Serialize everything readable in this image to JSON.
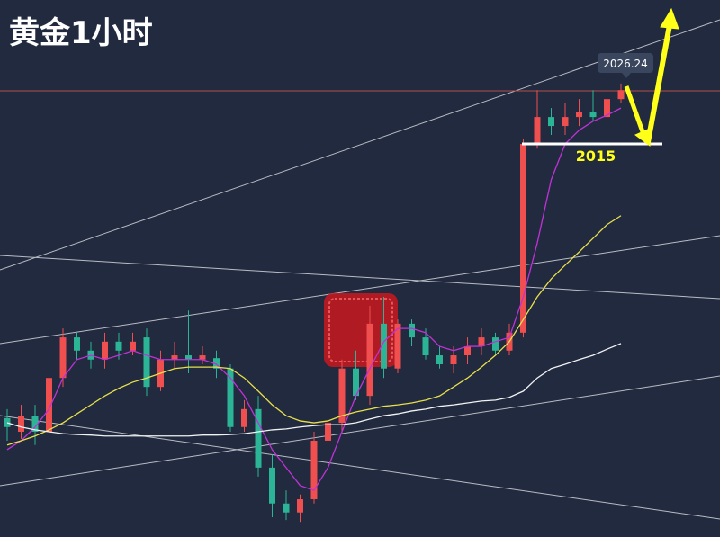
{
  "chart_data": {
    "type": "candlestick",
    "title": "黄金1小时",
    "ylim": [
      1931.7,
      2045.5
    ],
    "up_color": "#ef4f4f",
    "down_color": "#2bb596",
    "open": [
      1956.9,
      1954.0,
      1957.4,
      1954.0,
      1965.4,
      1974.0,
      1971.2,
      1969.3,
      1973.1,
      1971.2,
      1974.0,
      1963.5,
      1969.3,
      1970.2,
      1969.3,
      1969.6,
      1967.4,
      1955.0,
      1958.8,
      1946.4,
      1938.8,
      1936.9,
      1939.7,
      1952.1,
      1955.9,
      1967.4,
      1961.6,
      1976.9,
      1967.4,
      1976.9,
      1974.0,
      1970.2,
      1968.3,
      1970.2,
      1972.1,
      1974.0,
      1971.2,
      1975.0,
      2015.0,
      2020.7,
      2018.8,
      2020.7,
      2021.7,
      2020.7,
      2024.5
    ],
    "high": [
      1958.8,
      1959.7,
      1959.7,
      1967.4,
      1975.9,
      1975.0,
      1973.1,
      1975.0,
      1975.0,
      1975.0,
      1975.9,
      1971.2,
      1973.1,
      1979.7,
      1972.1,
      1971.2,
      1968.3,
      1960.7,
      1961.6,
      1949.2,
      1941.6,
      1940.7,
      1954.0,
      1957.8,
      1969.3,
      1971.2,
      1980.7,
      1982.6,
      1977.8,
      1977.8,
      1975.9,
      1972.1,
      1972.1,
      1974.0,
      1975.9,
      1975.0,
      1976.9,
      2016.0,
      2026.4,
      2022.6,
      2023.6,
      2024.5,
      2026.4,
      2026.4,
      2027.8
    ],
    "low": [
      1952.1,
      1952.5,
      1951.2,
      1952.1,
      1963.5,
      1969.3,
      1967.4,
      1967.4,
      1969.3,
      1970.2,
      1961.6,
      1962.6,
      1967.4,
      1966.4,
      1968.3,
      1965.4,
      1954.0,
      1954.0,
      1944.5,
      1935.9,
      1935.3,
      1934.9,
      1938.8,
      1950.2,
      1954.0,
      1960.7,
      1959.7,
      1965.4,
      1966.4,
      1972.1,
      1969.3,
      1967.4,
      1966.4,
      1968.3,
      1970.2,
      1970.2,
      1970.2,
      1974.0,
      2014.0,
      2016.9,
      2016.9,
      2018.8,
      2019.8,
      2019.8,
      2023.6
    ],
    "close": [
      1955.0,
      1957.4,
      1954.0,
      1965.4,
      1974.0,
      1971.2,
      1969.3,
      1973.1,
      1971.2,
      1973.1,
      1963.5,
      1969.3,
      1970.2,
      1969.3,
      1970.2,
      1967.4,
      1955.0,
      1958.8,
      1946.4,
      1938.8,
      1936.9,
      1939.7,
      1952.1,
      1955.9,
      1967.4,
      1961.6,
      1976.9,
      1967.4,
      1976.9,
      1974.0,
      1970.2,
      1968.3,
      1970.2,
      1972.1,
      1974.0,
      1971.2,
      1975.0,
      2015.0,
      2020.7,
      2018.8,
      2020.7,
      2021.7,
      2020.7,
      2024.5,
      2026.4
    ],
    "lines": [
      {
        "color": "#c032d6",
        "values": [
          1950.2,
          1952.1,
          1955.0,
          1958.8,
          1965.4,
          1969.3,
          1970.2,
          1969.3,
          1970.2,
          1971.2,
          1970.2,
          1969.3,
          1969.3,
          1969.3,
          1969.3,
          1968.3,
          1965.4,
          1961.6,
          1955.9,
          1950.2,
          1946.4,
          1942.6,
          1941.6,
          1946.4,
          1954.0,
          1961.6,
          1967.4,
          1973.1,
          1975.9,
          1975.9,
          1975.0,
          1972.1,
          1971.2,
          1972.1,
          1972.1,
          1973.1,
          1974.0,
          1982.6,
          1994.0,
          2007.4,
          2015.0,
          2017.9,
          2019.8,
          2021.1,
          2022.6
        ]
      },
      {
        "color": "#e8e04a",
        "values": [
          1951.2,
          1952.1,
          1953.1,
          1954.4,
          1955.9,
          1957.8,
          1959.7,
          1961.6,
          1963.2,
          1964.5,
          1965.4,
          1966.4,
          1967.4,
          1967.7,
          1967.7,
          1967.7,
          1967.4,
          1965.4,
          1962.6,
          1959.7,
          1957.4,
          1956.3,
          1955.9,
          1956.3,
          1957.4,
          1958.2,
          1958.8,
          1959.4,
          1959.7,
          1960.1,
          1960.7,
          1961.6,
          1963.5,
          1965.4,
          1967.7,
          1970.2,
          1973.1,
          1977.8,
          1982.6,
          1986.4,
          1989.3,
          1992.1,
          1995.0,
          1997.9,
          1999.8
        ]
      },
      {
        "color": "#f2f2f2",
        "values": [
          1955.9,
          1955.0,
          1954.4,
          1954.0,
          1953.6,
          1953.4,
          1953.3,
          1953.1,
          1953.1,
          1953.1,
          1953.1,
          1953.1,
          1953.1,
          1953.1,
          1953.3,
          1953.3,
          1953.4,
          1953.6,
          1954.0,
          1954.4,
          1954.6,
          1955.0,
          1955.3,
          1955.5,
          1955.5,
          1955.9,
          1956.7,
          1957.4,
          1957.8,
          1958.4,
          1958.8,
          1959.4,
          1959.7,
          1960.1,
          1960.5,
          1960.7,
          1961.3,
          1962.6,
          1965.4,
          1967.4,
          1968.3,
          1969.3,
          1970.2,
          1971.5,
          1972.7
        ]
      }
    ],
    "last_price": 2026.24,
    "support_level": 2015
  }
}
